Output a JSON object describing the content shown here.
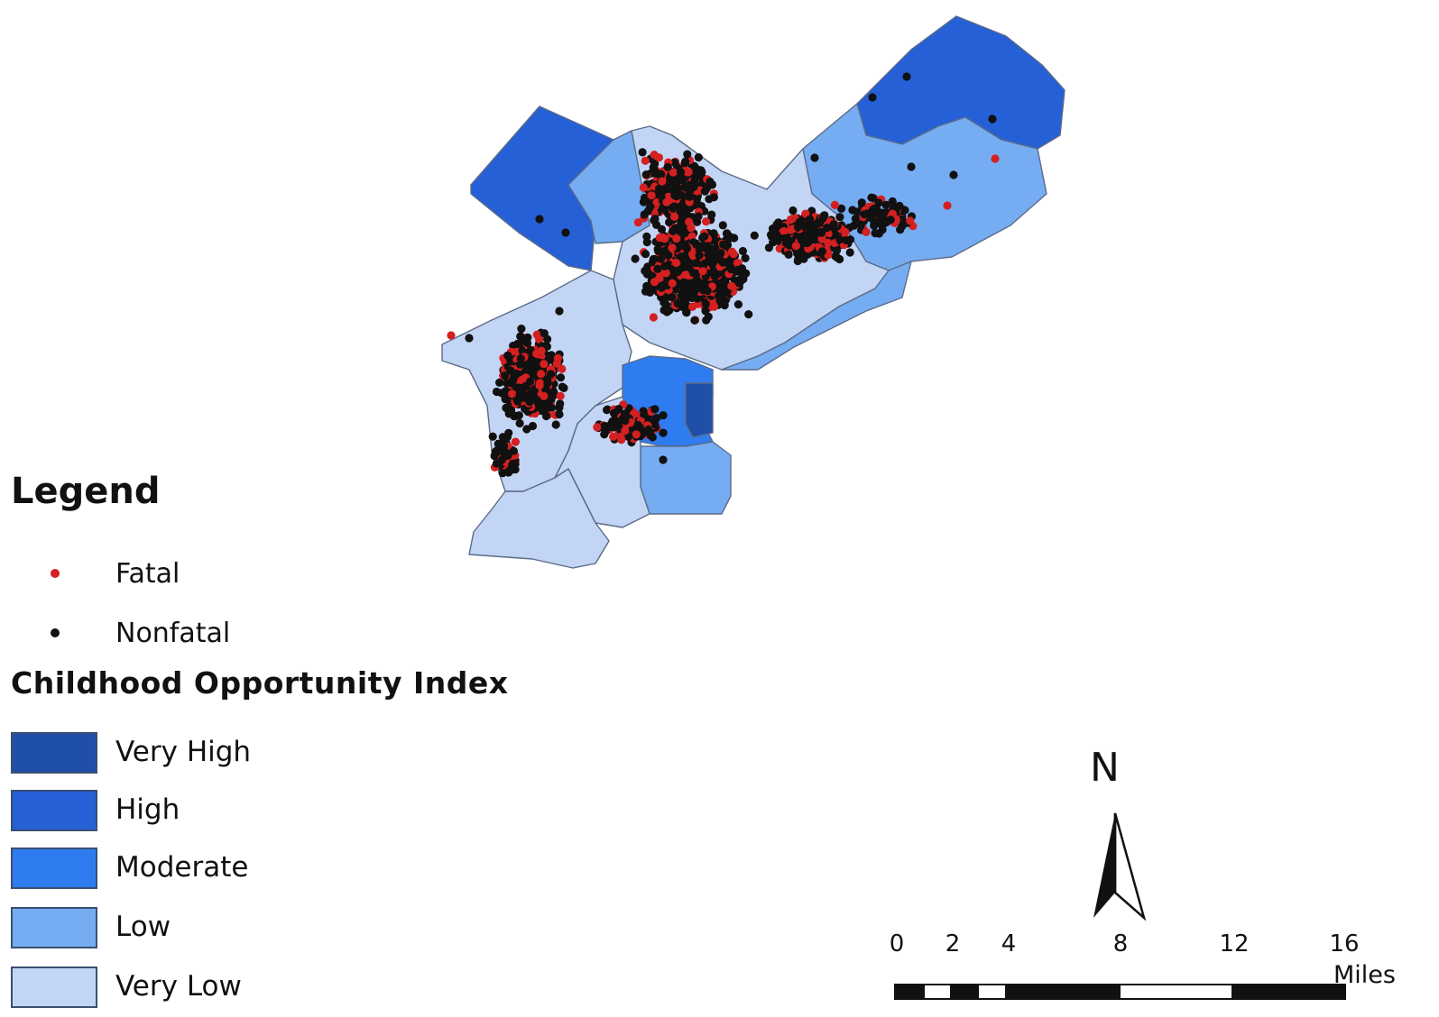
{
  "legend": {
    "title": "Legend",
    "points": [
      {
        "label": "Fatal",
        "color": "#d42020"
      },
      {
        "label": "Nonfatal",
        "color": "#111111"
      }
    ],
    "index_title": "Childhood Opportunity Index",
    "classes": [
      {
        "label": "Very High",
        "color": "#1f4fa8"
      },
      {
        "label": "High",
        "color": "#2560d6"
      },
      {
        "label": "Moderate",
        "color": "#2f7cf0"
      },
      {
        "label": "Low",
        "color": "#76adf2"
      },
      {
        "label": "Very Low",
        "color": "#c3d5f4"
      }
    ]
  },
  "north_arrow": {
    "label": "N"
  },
  "scale_bar": {
    "ticks": [
      "0",
      "2",
      "4",
      "8",
      "12",
      "16"
    ],
    "unit": "Miles"
  }
}
